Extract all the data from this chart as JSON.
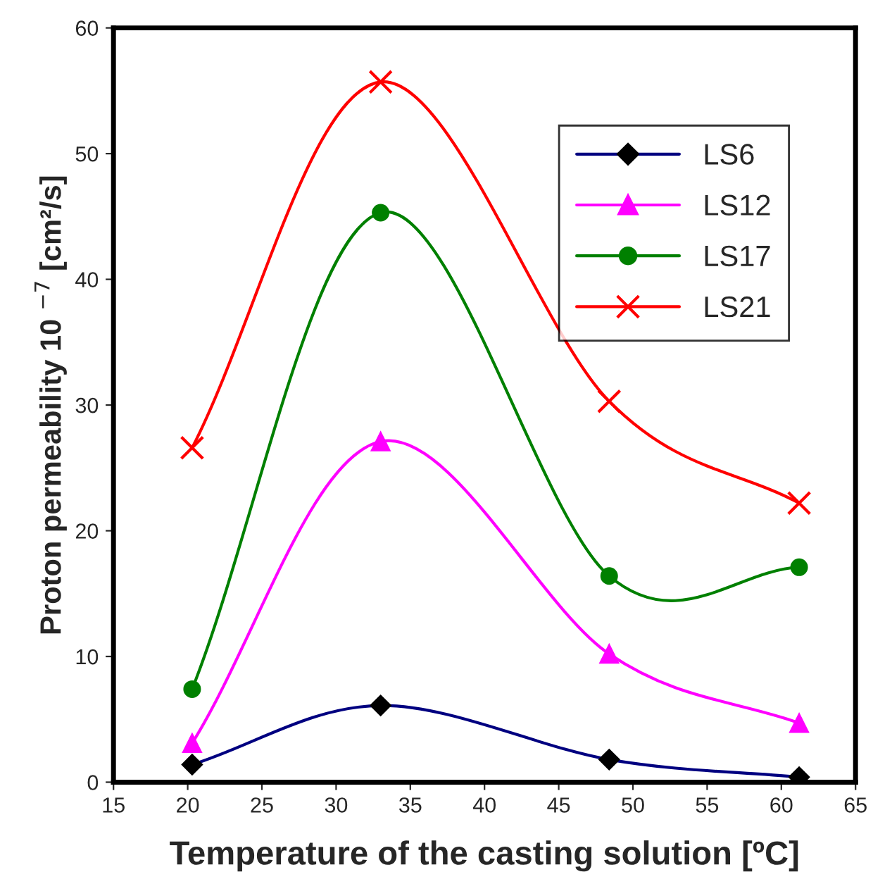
{
  "chart_data": {
    "type": "line",
    "xlabel": "Temperature of the casting solution [ºC]",
    "ylabel": "Proton permeability 10 $^{−7}$ [cm²/s]",
    "x": [
      20.3,
      33,
      48.4,
      61.2
    ],
    "series": [
      {
        "name": "LS6",
        "color": "#000080",
        "marker": "diamond",
        "values": [
          1.4,
          6.1,
          1.8,
          0.4
        ]
      },
      {
        "name": "LS12",
        "color": "#ff00ff",
        "marker": "triangle",
        "values": [
          3.1,
          27.1,
          10.2,
          4.7
        ]
      },
      {
        "name": "LS17",
        "color": "#008000",
        "marker": "circle",
        "values": [
          7.4,
          45.3,
          16.4,
          17.1
        ]
      },
      {
        "name": "LS21",
        "color": "#ff0000",
        "marker": "cross",
        "values": [
          26.6,
          55.7,
          30.3,
          22.2
        ]
      }
    ],
    "xlim": [
      15,
      65
    ],
    "xticks": [
      15,
      20,
      25,
      30,
      35,
      40,
      45,
      50,
      55,
      60,
      65
    ],
    "ylim": [
      0,
      60
    ],
    "yticks": [
      0,
      10,
      20,
      30,
      40,
      50,
      60
    ],
    "grid": false,
    "legend": "top right",
    "line_style": "solid"
  }
}
